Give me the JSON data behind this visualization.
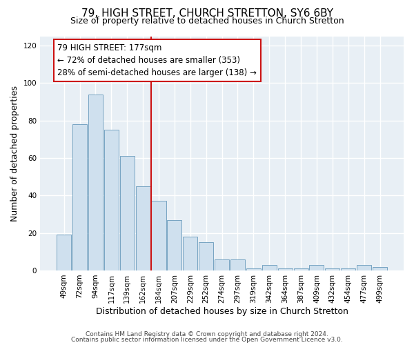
{
  "title": "79, HIGH STREET, CHURCH STRETTON, SY6 6BY",
  "subtitle": "Size of property relative to detached houses in Church Stretton",
  "xlabel": "Distribution of detached houses by size in Church Stretton",
  "ylabel": "Number of detached properties",
  "bar_labels": [
    "49sqm",
    "72sqm",
    "94sqm",
    "117sqm",
    "139sqm",
    "162sqm",
    "184sqm",
    "207sqm",
    "229sqm",
    "252sqm",
    "274sqm",
    "297sqm",
    "319sqm",
    "342sqm",
    "364sqm",
    "387sqm",
    "409sqm",
    "432sqm",
    "454sqm",
    "477sqm",
    "499sqm"
  ],
  "bar_values": [
    19,
    78,
    94,
    75,
    61,
    45,
    37,
    27,
    18,
    15,
    6,
    6,
    1,
    3,
    1,
    1,
    3,
    1,
    1,
    3,
    2
  ],
  "bar_color": "#cfe0ee",
  "bar_edge_color": "#6699bb",
  "vline_color": "#cc1111",
  "ylim": [
    0,
    125
  ],
  "yticks": [
    0,
    20,
    40,
    60,
    80,
    100,
    120
  ],
  "annotation_title": "79 HIGH STREET: 177sqm",
  "annotation_line1": "← 72% of detached houses are smaller (353)",
  "annotation_line2": "28% of semi-detached houses are larger (138) →",
  "annotation_box_color": "#cc1111",
  "footer1": "Contains HM Land Registry data © Crown copyright and database right 2024.",
  "footer2": "Contains public sector information licensed under the Open Government Licence v3.0.",
  "background_color": "#e8eff5",
  "grid_color": "#ffffff",
  "title_fontsize": 11,
  "subtitle_fontsize": 9,
  "xlabel_fontsize": 9,
  "ylabel_fontsize": 9,
  "tick_fontsize": 7.5,
  "annotation_fontsize": 8.5,
  "footer_fontsize": 6.5
}
